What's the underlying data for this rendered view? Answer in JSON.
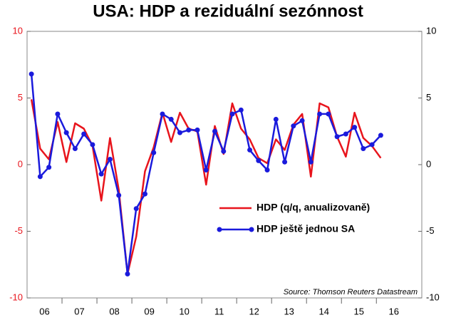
{
  "chart_data": {
    "type": "line",
    "title": "USA: HDP a reziduální sezónnost",
    "source": "Source: Thomson Reuters Datastream",
    "x": [
      2006.125,
      2006.375,
      2006.625,
      2006.875,
      2007.125,
      2007.375,
      2007.625,
      2007.875,
      2008.125,
      2008.375,
      2008.625,
      2008.875,
      2009.125,
      2009.375,
      2009.625,
      2009.875,
      2010.125,
      2010.375,
      2010.625,
      2010.875,
      2011.125,
      2011.375,
      2011.625,
      2011.875,
      2012.125,
      2012.375,
      2012.625,
      2012.875,
      2013.125,
      2013.375,
      2013.625,
      2013.875,
      2014.125,
      2014.375,
      2014.625,
      2014.875,
      2015.125,
      2015.375,
      2015.625,
      2015.875,
      2016.125
    ],
    "series": [
      {
        "name": "HDP (q/q, anualizovaně)",
        "color": "#e8141c",
        "values": [
          4.9,
          1.2,
          0.4,
          3.2,
          0.2,
          3.1,
          2.7,
          1.4,
          -2.7,
          2.0,
          -1.9,
          -8.2,
          -5.4,
          -0.5,
          1.3,
          3.9,
          1.7,
          3.9,
          2.7,
          2.5,
          -1.5,
          2.9,
          0.8,
          4.6,
          2.7,
          1.9,
          0.5,
          0.1,
          1.9,
          1.1,
          3.0,
          3.8,
          -0.9,
          4.6,
          4.3,
          2.1,
          0.6,
          3.9,
          2.0,
          1.4,
          0.5
        ]
      },
      {
        "name": "HDP ještě jednou SA",
        "color": "#1a1adc",
        "axis": "y2",
        "markers": true,
        "values": [
          6.8,
          -0.9,
          -0.2,
          3.8,
          2.4,
          1.2,
          2.3,
          1.5,
          -0.7,
          0.4,
          -2.3,
          -8.2,
          -3.3,
          -2.2,
          0.9,
          3.8,
          3.4,
          2.4,
          2.6,
          2.6,
          -0.4,
          2.5,
          1.0,
          3.8,
          4.1,
          1.1,
          0.3,
          -0.4,
          3.4,
          0.2,
          2.9,
          3.3,
          0.2,
          3.8,
          3.8,
          2.1,
          2.3,
          2.8,
          1.2,
          1.5,
          2.2
        ]
      }
    ],
    "xlim": [
      2006,
      2017.3
    ],
    "xticks": [
      {
        "value": 2006.5,
        "label": "06"
      },
      {
        "value": 2007.5,
        "label": "07"
      },
      {
        "value": 2008.5,
        "label": "08"
      },
      {
        "value": 2009.5,
        "label": "09"
      },
      {
        "value": 2010.5,
        "label": "10"
      },
      {
        "value": 2011.5,
        "label": "11"
      },
      {
        "value": 2012.5,
        "label": "12"
      },
      {
        "value": 2013.5,
        "label": "13"
      },
      {
        "value": 2014.5,
        "label": "14"
      },
      {
        "value": 2015.5,
        "label": "15"
      },
      {
        "value": 2016.5,
        "label": "16"
      }
    ],
    "ylim": [
      -10,
      10
    ],
    "yticks": [
      -10,
      -5,
      0,
      5,
      10
    ],
    "y2lim": [
      -10,
      10
    ],
    "y2ticks": [
      -10,
      -5,
      0,
      5,
      10
    ],
    "grid": false,
    "legend": "lower right"
  }
}
